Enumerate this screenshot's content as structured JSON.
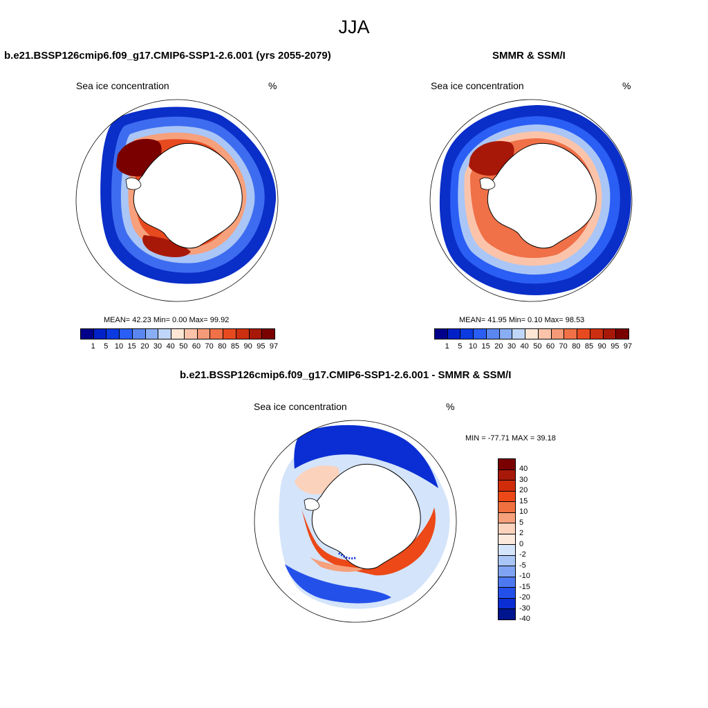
{
  "title": "JJA",
  "colors": {
    "concentration": [
      "#00008b",
      "#0020c8",
      "#0a3ae0",
      "#2a5ef4",
      "#5a86f0",
      "#8aaef4",
      "#c0d6f8",
      "#fde6d6",
      "#fbc4aa",
      "#f59a78",
      "#f07048",
      "#e84a20",
      "#cc3010",
      "#a81808",
      "#7a0000"
    ],
    "difference": [
      "#7a0000",
      "#a81808",
      "#d02c0a",
      "#ec4818",
      "#f07040",
      "#f6a07c",
      "#fbd2bc",
      "#fde8dc",
      "#d4e4fa",
      "#aac6f6",
      "#80a4f2",
      "#4e78f0",
      "#2450ea",
      "#0a2ed4",
      "#00158e"
    ]
  },
  "panels": {
    "model": {
      "title": "b.e21.BSSP126cmip6.f09_g17.CMIP6-SSP1-2.6.001 (yrs 2055-2079)",
      "subtitle_left": "Sea ice concentration",
      "subtitle_right": "%",
      "stats": "MEAN=  42.23  Min=   0.00  Max=  99.92"
    },
    "obs": {
      "title": "SMMR & SSM/I",
      "subtitle_left": "Sea ice concentration",
      "subtitle_right": "%",
      "stats": "MEAN=  41.95  Min=   0.10  Max=  98.53"
    },
    "diff": {
      "title": "b.e21.BSSP126cmip6.f09_g17.CMIP6-SSP1-2.6.001 - SMMR & SSM/I",
      "subtitle_left": "Sea ice concentration",
      "subtitle_right": "%",
      "stats": "MIN = -77.71 MAX =  39.18"
    }
  },
  "colorbar_concentration": {
    "labels": [
      "1",
      "5",
      "10",
      "15",
      "20",
      "30",
      "40",
      "50",
      "60",
      "70",
      "80",
      "85",
      "90",
      "95",
      "97"
    ]
  },
  "colorbar_difference": {
    "labels": [
      "40",
      "30",
      "20",
      "15",
      "10",
      "5",
      "2",
      "0",
      "-2",
      "-5",
      "-10",
      "-15",
      "-20",
      "-30",
      "-40"
    ]
  }
}
